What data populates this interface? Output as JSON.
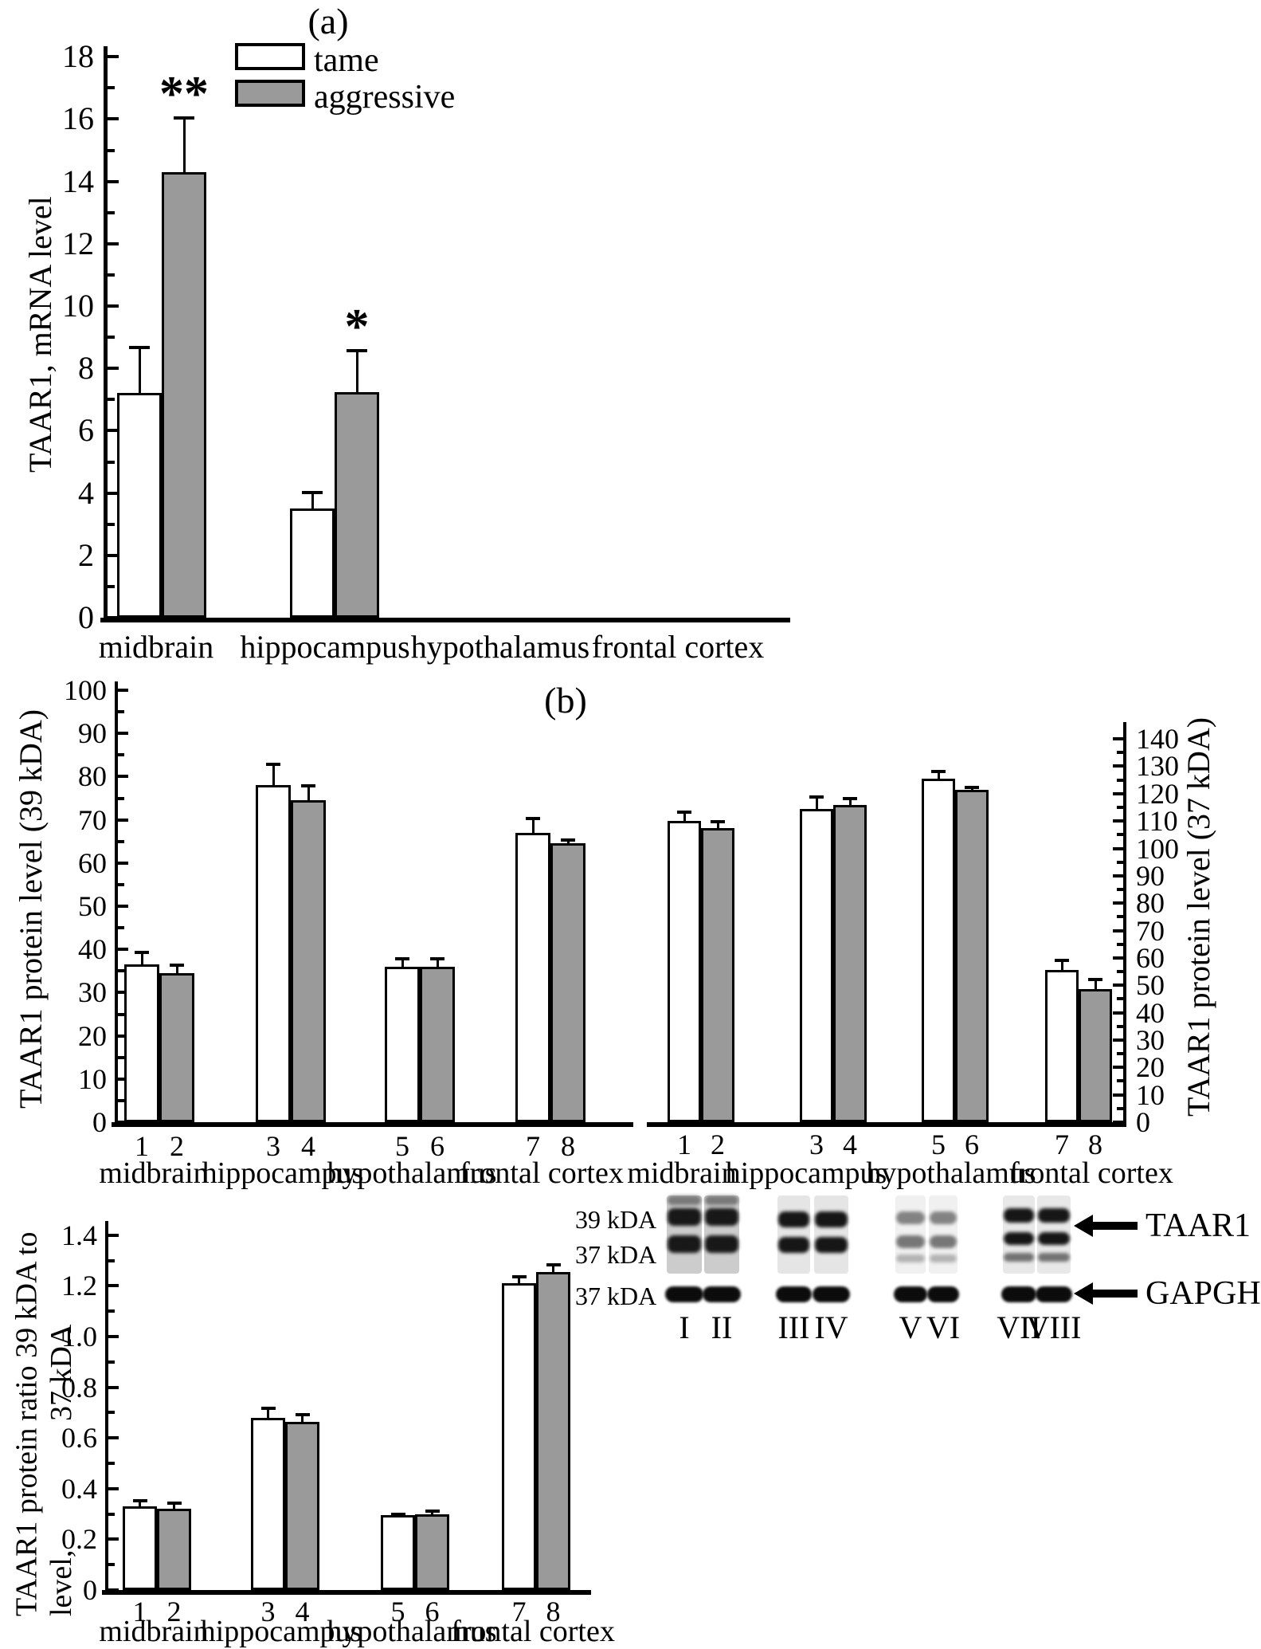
{
  "figure": {
    "panel_a_label": "(a)",
    "panel_b_label": "(b)"
  },
  "legend": {
    "tame_label": "tame",
    "aggressive_label": "aggressive"
  },
  "colors": {
    "tame_fill": "#ffffff",
    "aggressive_fill": "#9a9a9a",
    "ink": "#000000"
  },
  "chart_data": [
    {
      "id": "mrna",
      "type": "bar",
      "title": "(a)",
      "ylabel": "TAAR1, mRNA level",
      "ylim": [
        0,
        18
      ],
      "ytick_step": 2,
      "ytick_labels": [
        "0",
        "2",
        "4",
        "6",
        "8",
        "10",
        "12",
        "14",
        "16",
        "18"
      ],
      "grid": false,
      "legend_position": "top-inside",
      "categories": [
        "midbrain",
        "hippocampus",
        "hypothalamus",
        "frontal cortex"
      ],
      "series": [
        {
          "name": "tame",
          "values": [
            7.2,
            3.5,
            0,
            0
          ],
          "errors": [
            1.5,
            0.55,
            0,
            0
          ]
        },
        {
          "name": "aggressive",
          "values": [
            14.3,
            7.25,
            0,
            0
          ],
          "errors": [
            1.75,
            1.35,
            0,
            0
          ]
        }
      ],
      "significance": [
        {
          "category": "midbrain",
          "series": "aggressive",
          "mark": "**"
        },
        {
          "category": "hippocampus",
          "series": "aggressive",
          "mark": "*"
        }
      ]
    },
    {
      "id": "protein39",
      "type": "bar",
      "title": "(b)",
      "ylabel": "TAAR1 protein level (39 kDA)",
      "ylim": [
        0,
        100
      ],
      "ytick_step": 10,
      "ytick_labels": [
        "0",
        "10",
        "20",
        "30",
        "40",
        "50",
        "60",
        "70",
        "80",
        "90",
        "100"
      ],
      "grid": false,
      "bar_numbers": [
        "1",
        "2",
        "3",
        "4",
        "5",
        "6",
        "7",
        "8"
      ],
      "categories": [
        "midbrain",
        "hippocampus",
        "hypothalamus",
        "frontal cortex"
      ],
      "series": [
        {
          "name": "tame",
          "values": [
            36.5,
            78,
            36,
            67
          ],
          "errors": [
            3,
            5,
            2,
            3.5
          ]
        },
        {
          "name": "aggressive",
          "values": [
            34.5,
            74.5,
            36,
            64.5
          ],
          "errors": [
            2,
            3.5,
            2,
            1
          ]
        }
      ]
    },
    {
      "id": "protein37",
      "type": "bar",
      "title": "(b)",
      "ylabel": "TAAR1 protein level (37 kDA)",
      "ylim": [
        0,
        140
      ],
      "ytick_step": 10,
      "ytick_labels": [
        "0",
        "10",
        "20",
        "30",
        "40",
        "50",
        "60",
        "70",
        "80",
        "90",
        "100",
        "110",
        "120",
        "130",
        "140"
      ],
      "grid": false,
      "axis_side": "right",
      "bar_numbers": [
        "1",
        "2",
        "3",
        "4",
        "5",
        "6",
        "7",
        "8"
      ],
      "categories": [
        "midbrain",
        "hippocampus",
        "hypothalamus",
        "frontal cortex"
      ],
      "series": [
        {
          "name": "tame",
          "values": [
            110,
            114.5,
            125.5,
            55.5
          ],
          "errors": [
            3.5,
            4.5,
            3,
            4
          ]
        },
        {
          "name": "aggressive",
          "values": [
            107.5,
            116,
            121.5,
            48.5
          ],
          "errors": [
            2.5,
            2.5,
            1,
            4
          ]
        }
      ]
    },
    {
      "id": "ratio",
      "type": "bar",
      "ylabel_lines": [
        "TAAR1 protein level,",
        "ratio 39 kDA to 37 kDA"
      ],
      "ylim": [
        0,
        1.4
      ],
      "ytick_step": 0.2,
      "ytick_labels": [
        "0",
        "0.2",
        "0.4",
        "0.6",
        "0.8",
        "1.0",
        "1.2",
        "1.4"
      ],
      "grid": false,
      "bar_numbers": [
        "1",
        "2",
        "3",
        "4",
        "5",
        "6",
        "7",
        "8"
      ],
      "categories": [
        "midbrain",
        "hippocampus",
        "hypothalamus",
        "frontal cortex"
      ],
      "series": [
        {
          "name": "tame",
          "values": [
            0.33,
            0.68,
            0.295,
            1.21
          ],
          "errors": [
            0.025,
            0.04,
            0.008,
            0.03
          ]
        },
        {
          "name": "aggressive",
          "values": [
            0.32,
            0.665,
            0.3,
            1.255
          ],
          "errors": [
            0.025,
            0.03,
            0.015,
            0.03
          ]
        }
      ]
    }
  ],
  "blot": {
    "marker_labels": [
      "39 kDA",
      "37 kDA",
      "37 kDA"
    ],
    "protein_labels": [
      "TAAR1",
      "GAPGH"
    ],
    "lane_labels": [
      "I",
      "II",
      "III",
      "IV",
      "V",
      "VI",
      "VII",
      "VIII"
    ],
    "lane_styles": [
      "smear-heavy",
      "smear-heavy",
      "two-band",
      "two-band",
      "faint",
      "faint",
      "three-band",
      "three-band"
    ]
  }
}
